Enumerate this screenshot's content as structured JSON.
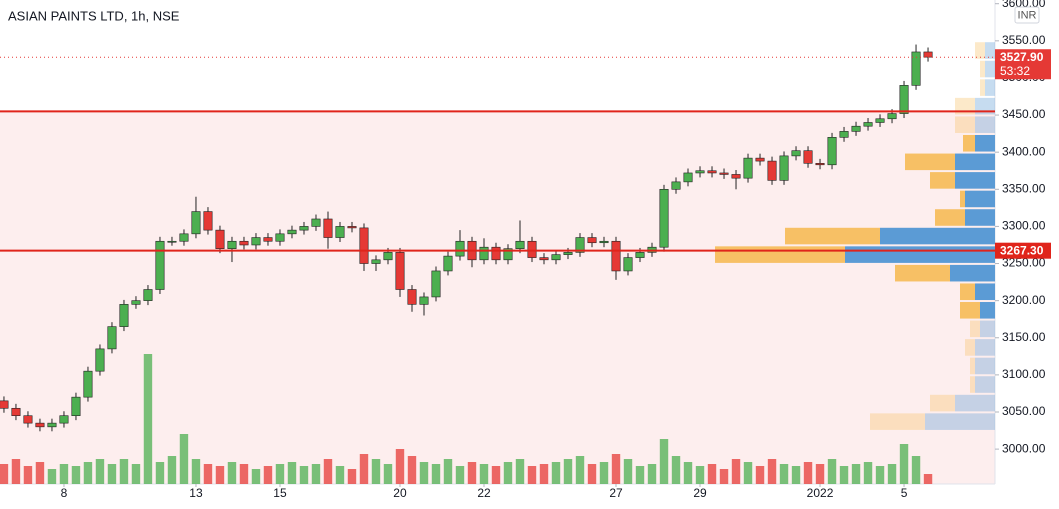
{
  "chart_data": {
    "type": "candlestick",
    "title": "ASIAN PAINTS LTD, 1h, NSE",
    "currency": "INR",
    "up_color": "#4caf50",
    "down_color": "#e53935",
    "open": [
      3065,
      3055,
      3045,
      3035,
      3030,
      3035,
      3045,
      3070,
      3105,
      3135,
      3165,
      3195,
      3200,
      3215,
      3280,
      3280,
      3290,
      3320,
      3295,
      3270,
      3280,
      3275,
      3285,
      3280,
      3290,
      3295,
      3300,
      3310,
      3285,
      3300,
      3298,
      3250,
      3255,
      3265,
      3215,
      3195,
      3205,
      3240,
      3260,
      3280,
      3255,
      3272,
      3255,
      3270,
      3280,
      3258,
      3255,
      3262,
      3265,
      3285,
      3278,
      3280,
      3240,
      3258,
      3265,
      3272,
      3350,
      3360,
      3372,
      3375,
      3372,
      3370,
      3365,
      3392,
      3388,
      3362,
      3395,
      3402,
      3385,
      3383,
      3420,
      3428,
      3435,
      3440,
      3445,
      3452,
      3490,
      3535
    ],
    "high": [
      3071,
      3061,
      3051,
      3041,
      3041,
      3051,
      3076,
      3111,
      3141,
      3171,
      3201,
      3206,
      3221,
      3286,
      3286,
      3296,
      3340,
      3326,
      3301,
      3286,
      3286,
      3291,
      3291,
      3296,
      3301,
      3306,
      3316,
      3320,
      3306,
      3306,
      3304,
      3261,
      3271,
      3271,
      3221,
      3211,
      3246,
      3266,
      3295,
      3286,
      3284,
      3278,
      3276,
      3308,
      3286,
      3264,
      3268,
      3271,
      3291,
      3291,
      3286,
      3286,
      3264,
      3271,
      3278,
      3356,
      3366,
      3378,
      3381,
      3381,
      3378,
      3376,
      3398,
      3398,
      3394,
      3401,
      3408,
      3408,
      3391,
      3426,
      3434,
      3441,
      3446,
      3451,
      3458,
      3496,
      3545,
      3541
    ],
    "low": [
      3049,
      3039,
      3029,
      3024,
      3024,
      3029,
      3039,
      3064,
      3099,
      3129,
      3159,
      3189,
      3194,
      3209,
      3274,
      3274,
      3284,
      3289,
      3264,
      3252,
      3269,
      3269,
      3274,
      3274,
      3284,
      3289,
      3294,
      3270,
      3279,
      3292,
      3240,
      3240,
      3249,
      3205,
      3185,
      3180,
      3199,
      3234,
      3254,
      3245,
      3249,
      3249,
      3249,
      3264,
      3252,
      3249,
      3249,
      3256,
      3259,
      3272,
      3272,
      3228,
      3234,
      3252,
      3259,
      3266,
      3344,
      3354,
      3366,
      3366,
      3364,
      3350,
      3359,
      3382,
      3356,
      3356,
      3389,
      3379,
      3377,
      3377,
      3414,
      3422,
      3429,
      3434,
      3439,
      3446,
      3484,
      3522
    ],
    "close": [
      3055,
      3045,
      3035,
      3030,
      3035,
      3045,
      3070,
      3105,
      3135,
      3165,
      3195,
      3200,
      3215,
      3280,
      3280,
      3290,
      3320,
      3295,
      3270,
      3280,
      3275,
      3285,
      3280,
      3290,
      3295,
      3300,
      3310,
      3285,
      3300,
      3298,
      3250,
      3255,
      3265,
      3215,
      3195,
      3205,
      3240,
      3260,
      3280,
      3255,
      3272,
      3255,
      3270,
      3280,
      3258,
      3255,
      3262,
      3265,
      3285,
      3278,
      3280,
      3240,
      3258,
      3265,
      3272,
      3350,
      3360,
      3372,
      3375,
      3372,
      3370,
      3365,
      3392,
      3388,
      3362,
      3395,
      3402,
      3385,
      3383,
      3420,
      3428,
      3435,
      3440,
      3445,
      3452,
      3490,
      3535,
      3528
    ],
    "volume": [
      20,
      25,
      18,
      22,
      15,
      20,
      18,
      22,
      25,
      20,
      25,
      20,
      130,
      22,
      28,
      50,
      25,
      20,
      18,
      22,
      20,
      15,
      18,
      20,
      22,
      18,
      20,
      25,
      18,
      15,
      30,
      25,
      20,
      35,
      28,
      22,
      20,
      25,
      18,
      22,
      20,
      18,
      22,
      25,
      18,
      20,
      22,
      25,
      28,
      20,
      22,
      30,
      25,
      18,
      20,
      45,
      28,
      22,
      18,
      20,
      15,
      25,
      22,
      18,
      25,
      20,
      18,
      22,
      20,
      25,
      18,
      20,
      22,
      18,
      20,
      40,
      28,
      10
    ],
    "xlim": [
      -0.33,
      82.58
    ],
    "xticks": [
      {
        "value": 5,
        "label": "8"
      },
      {
        "value": 16,
        "label": "13"
      },
      {
        "value": 23,
        "label": "15"
      },
      {
        "value": 33,
        "label": "20"
      },
      {
        "value": 40,
        "label": "22"
      },
      {
        "value": 51,
        "label": "27"
      },
      {
        "value": 58,
        "label": "29"
      },
      {
        "value": 68,
        "label": "2022"
      },
      {
        "value": 75,
        "label": "5"
      }
    ],
    "ylim": [
      2953,
      3605
    ],
    "yticks": [
      {
        "value": 3000,
        "label": "3000.00"
      },
      {
        "value": 3050,
        "label": "3050.00"
      },
      {
        "value": 3100,
        "label": "3100.00"
      },
      {
        "value": 3150,
        "label": "3150.00"
      },
      {
        "value": 3200,
        "label": "3200.00"
      },
      {
        "value": 3250,
        "label": "3250.00"
      },
      {
        "value": 3300,
        "label": "3300.00"
      },
      {
        "value": 3350,
        "label": "3350.00"
      },
      {
        "value": 3400,
        "label": "3400.00"
      },
      {
        "value": 3450,
        "label": "3450.00"
      },
      {
        "value": 3500,
        "label": "3500.00"
      },
      {
        "value": 3550,
        "label": "3550.00"
      },
      {
        "value": 3600,
        "label": "3600.00"
      }
    ],
    "horizontal_lines": [
      3455,
      {
        "value": 3267.3,
        "label": "3267.30"
      }
    ],
    "line_color": "#e0241b",
    "last_price": {
      "value": 3527.9,
      "label": "3527.90"
    },
    "countdown": "53:32",
    "volume_profile": {
      "levels": [
        3037,
        3062,
        3087,
        3112,
        3137,
        3162,
        3187,
        3212,
        3237,
        3262,
        3287,
        3312,
        3337,
        3362,
        3387,
        3412,
        3437,
        3462,
        3487,
        3512,
        3537
      ],
      "up": [
        70,
        40,
        20,
        20,
        20,
        15,
        15,
        20,
        45,
        150,
        115,
        30,
        30,
        40,
        40,
        20,
        20,
        20,
        10,
        10,
        10
      ],
      "down": [
        55,
        25,
        5,
        5,
        10,
        10,
        20,
        15,
        55,
        130,
        95,
        30,
        5,
        25,
        50,
        12,
        20,
        20,
        5,
        5,
        10
      ],
      "up_color": "#5b9bd5",
      "down_color": "#f7c065",
      "value_area": [
        3175,
        3425
      ]
    }
  }
}
